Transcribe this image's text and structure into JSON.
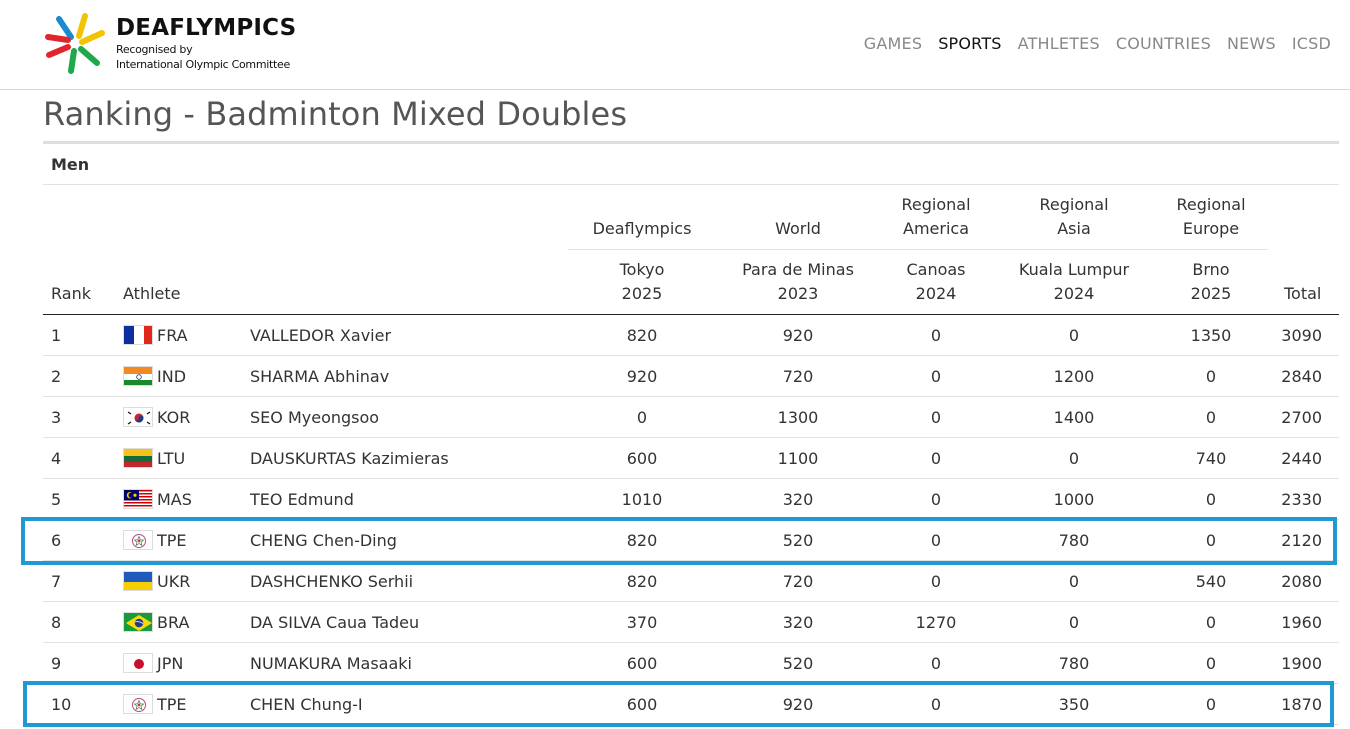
{
  "header": {
    "brand_title": "DEAFLYMPICS",
    "brand_sub1": "Recognised by",
    "brand_sub2": "International Olympic Committee",
    "nav": [
      {
        "label": "GAMES",
        "active": false
      },
      {
        "label": "SPORTS",
        "active": true
      },
      {
        "label": "ATHLETES",
        "active": false
      },
      {
        "label": "COUNTRIES",
        "active": false
      },
      {
        "label": "NEWS",
        "active": false
      },
      {
        "label": "ICSD",
        "active": false
      }
    ]
  },
  "page": {
    "title": "Ranking - Badminton Mixed Doubles",
    "section": "Men"
  },
  "table": {
    "groups": {
      "deaflympics": "Deaflympics",
      "world": "World",
      "reg_america_1": "Regional",
      "reg_america_2": "America",
      "reg_asia_1": "Regional",
      "reg_asia_2": "Asia",
      "reg_europe_1": "Regional",
      "reg_europe_2": "Europe"
    },
    "events": {
      "e1_city": "Tokyo",
      "e1_year": "2025",
      "e2_city": "Para de Minas",
      "e2_year": "2023",
      "e3_city": "Canoas",
      "e3_year": "2024",
      "e4_city": "Kuala Lumpur",
      "e4_year": "2024",
      "e5_city": "Brno",
      "e5_year": "2025"
    },
    "headers": {
      "rank": "Rank",
      "athlete": "Athlete",
      "total": "Total"
    },
    "rows": [
      {
        "rank": "1",
        "flag": "fra",
        "code": "FRA",
        "name": "VALLEDOR Xavier",
        "v1": "820",
        "v2": "920",
        "v3": "0",
        "v4": "0",
        "v5": "1350",
        "total": "3090"
      },
      {
        "rank": "2",
        "flag": "ind",
        "code": "IND",
        "name": "SHARMA Abhinav",
        "v1": "920",
        "v2": "720",
        "v3": "0",
        "v4": "1200",
        "v5": "0",
        "total": "2840"
      },
      {
        "rank": "3",
        "flag": "kor",
        "code": "KOR",
        "name": "SEO Myeongsoo",
        "v1": "0",
        "v2": "1300",
        "v3": "0",
        "v4": "1400",
        "v5": "0",
        "total": "2700"
      },
      {
        "rank": "4",
        "flag": "ltu",
        "code": "LTU",
        "name": "DAUSKURTAS Kazimieras",
        "v1": "600",
        "v2": "1100",
        "v3": "0",
        "v4": "0",
        "v5": "740",
        "total": "2440"
      },
      {
        "rank": "5",
        "flag": "mas",
        "code": "MAS",
        "name": "TEO Edmund",
        "v1": "1010",
        "v2": "320",
        "v3": "0",
        "v4": "1000",
        "v5": "0",
        "total": "2330"
      },
      {
        "rank": "6",
        "flag": "tpe",
        "code": "TPE",
        "name": "CHENG Chen-Ding",
        "v1": "820",
        "v2": "520",
        "v3": "0",
        "v4": "780",
        "v5": "0",
        "total": "2120"
      },
      {
        "rank": "7",
        "flag": "ukr",
        "code": "UKR",
        "name": "DASHCHENKO Serhii",
        "v1": "820",
        "v2": "720",
        "v3": "0",
        "v4": "0",
        "v5": "540",
        "total": "2080"
      },
      {
        "rank": "8",
        "flag": "bra",
        "code": "BRA",
        "name": "DA SILVA Caua Tadeu",
        "v1": "370",
        "v2": "320",
        "v3": "1270",
        "v4": "0",
        "v5": "0",
        "total": "1960"
      },
      {
        "rank": "9",
        "flag": "jpn",
        "code": "JPN",
        "name": "NUMAKURA Masaaki",
        "v1": "600",
        "v2": "520",
        "v3": "0",
        "v4": "780",
        "v5": "0",
        "total": "1900"
      },
      {
        "rank": "10",
        "flag": "tpe",
        "code": "TPE",
        "name": "CHEN Chung-I",
        "v1": "600",
        "v2": "920",
        "v3": "0",
        "v4": "350",
        "v5": "0",
        "total": "1870"
      }
    ]
  },
  "colors": {
    "highlight": "#1f9bd1"
  }
}
